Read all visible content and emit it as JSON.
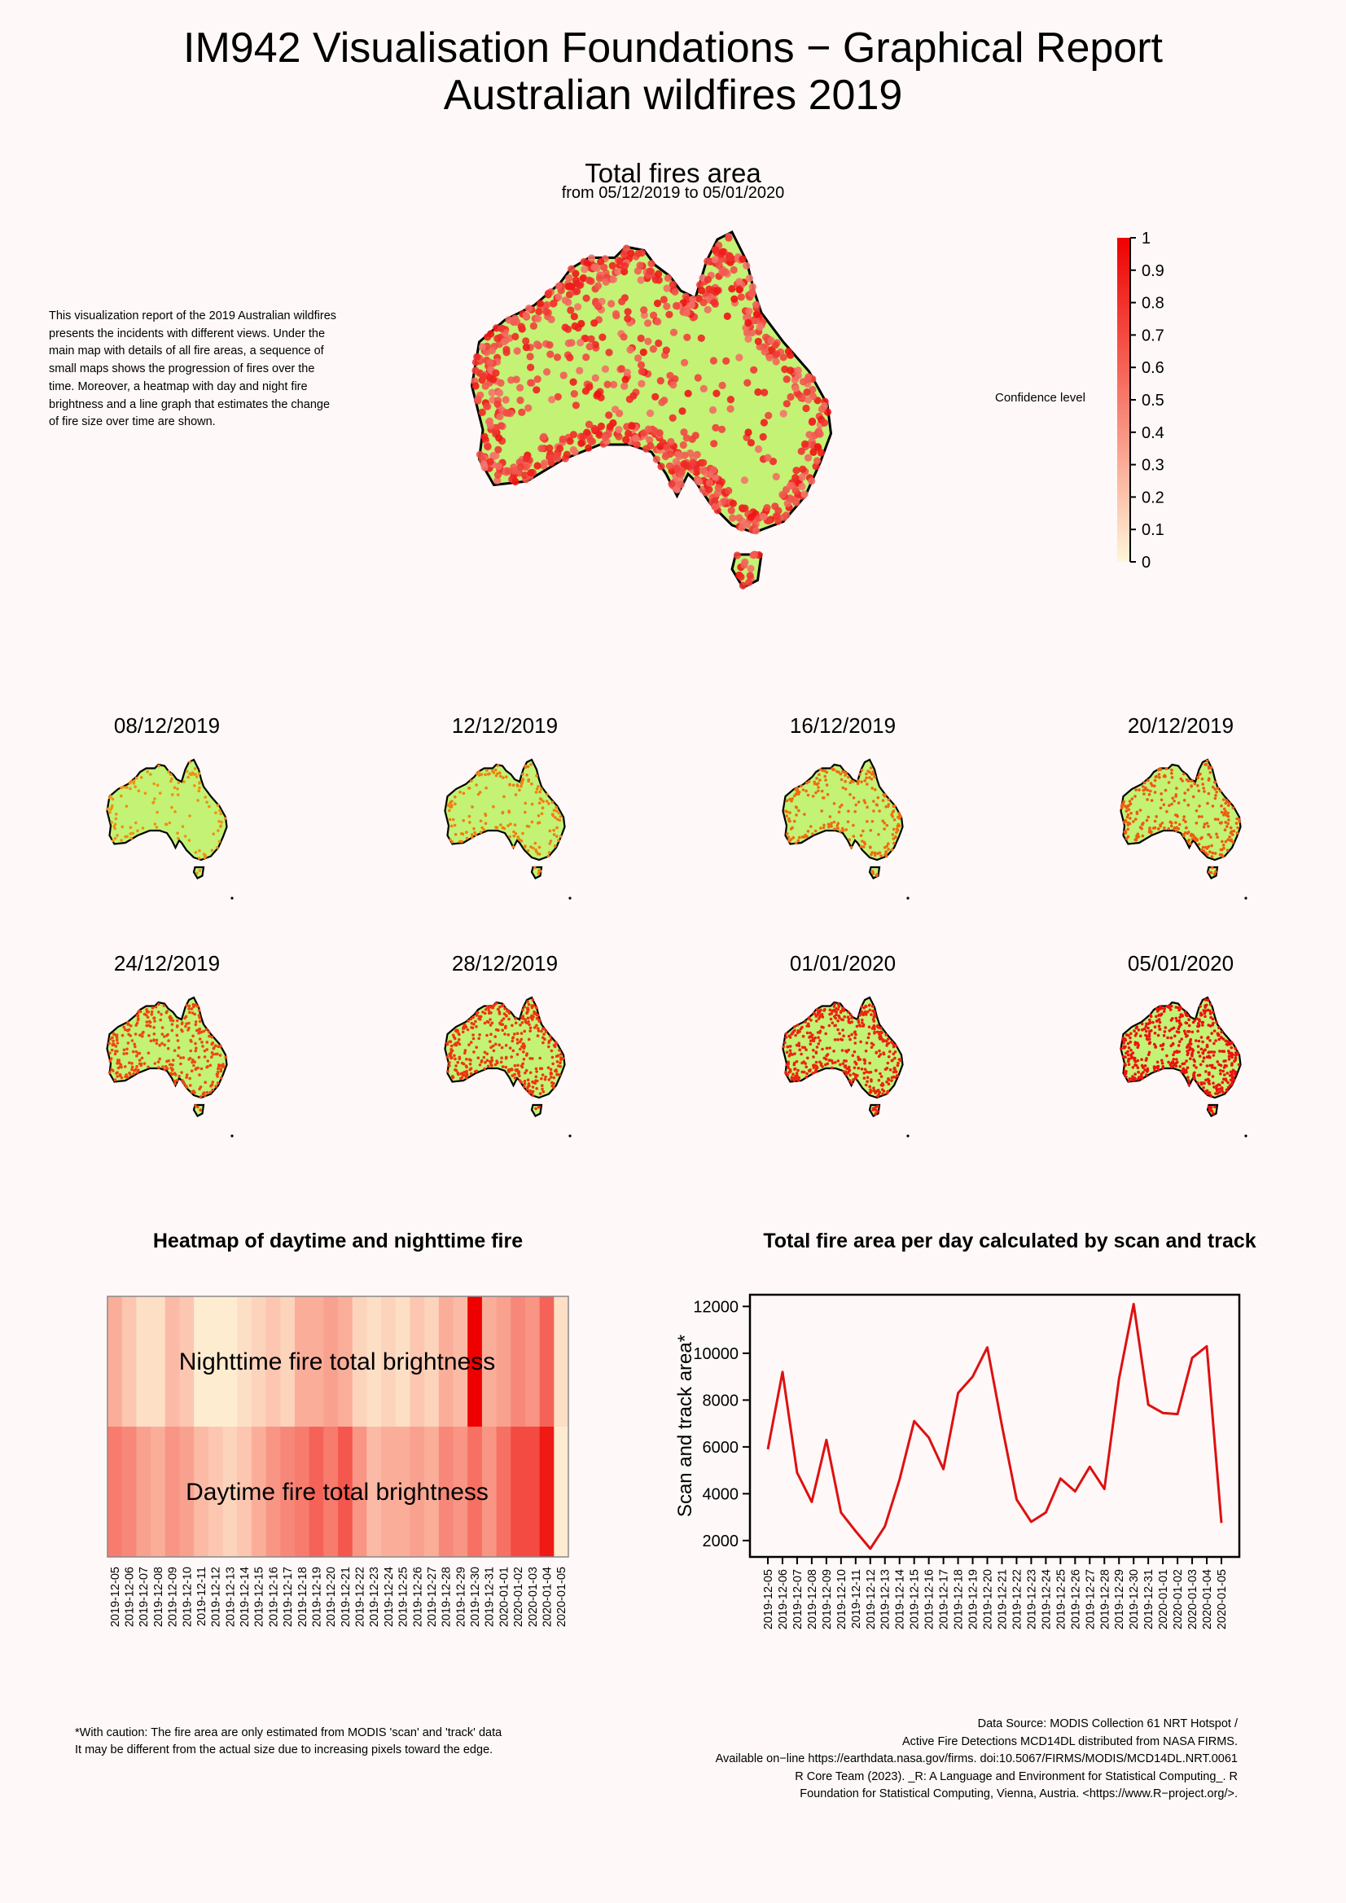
{
  "report": {
    "title_line1": "IM942 Visualisation Foundations − Graphical Report",
    "title_line2": "Australian wildfires 2019"
  },
  "main_map": {
    "title": "Total fires area",
    "subtitle": "from 05/12/2019 to 05/01/2020",
    "land_color": "#c3f275",
    "legend_label": "Confidence level",
    "legend_ticks": [
      "0",
      "0.1",
      "0.2",
      "0.3",
      "0.4",
      "0.5",
      "0.6",
      "0.7",
      "0.8",
      "0.9",
      "1"
    ],
    "legend_colors": [
      "#fff6d9",
      "#ee0000"
    ]
  },
  "description": "This visualization report of the 2019 Australian wildfires presents the incidents with different views. Under the main map with details of all fire areas, a sequence of small maps shows the progression of fires over the time. Moreover, a heatmap with day and night fire brightness and a line graph that estimates the change of fire size over time are shown.",
  "small_maps": {
    "dates": [
      "08/12/2019",
      "12/12/2019",
      "16/12/2019",
      "20/12/2019",
      "24/12/2019",
      "28/12/2019",
      "01/01/2020",
      "05/01/2020"
    ],
    "fire_color_early": "#f09010",
    "fire_color_late": "#ee1111"
  },
  "footnote_left": [
    "*With caution: The fire area are only estimated from MODIS 'scan' and 'track' data",
    "It may be different from the actual size due to increasing pixels toward the edge."
  ],
  "footnote_right": [
    "Data Source: MODIS Collection 61 NRT Hotspot /",
    "Active Fire Detections MCD14DL distributed from NASA FIRMS.",
    "Available on−line https://earthdata.nasa.gov/firms. doi:10.5067/FIRMS/MODIS/MCD14DL.NRT.0061",
    "R Core Team (2023). _R: A Language and Environment for Statistical Computing_. R",
    "Foundation for Statistical Computing, Vienna, Austria. <https://www.R−project.org/>."
  ],
  "chart_data": [
    {
      "type": "heatmap",
      "title": "Heatmap of daytime and nighttime fire",
      "rows": [
        "Nighttime fire total brightness",
        "Daytime fire total brightness"
      ],
      "categories": [
        "2019-12-05",
        "2019-12-06",
        "2019-12-07",
        "2019-12-08",
        "2019-12-09",
        "2019-12-10",
        "2019-12-11",
        "2019-12-12",
        "2019-12-13",
        "2019-12-14",
        "2019-12-15",
        "2019-12-16",
        "2019-12-17",
        "2019-12-18",
        "2019-12-19",
        "2019-12-20",
        "2019-12-21",
        "2019-12-22",
        "2019-12-23",
        "2019-12-24",
        "2019-12-25",
        "2019-12-26",
        "2019-12-27",
        "2019-12-28",
        "2019-12-29",
        "2019-12-30",
        "2019-12-31",
        "2020-01-01",
        "2020-01-02",
        "2020-01-03",
        "2020-01-04",
        "2020-01-05"
      ],
      "values": [
        [
          0.3,
          0.2,
          0.1,
          0.1,
          0.25,
          0.2,
          0.05,
          0.05,
          0.05,
          0.1,
          0.15,
          0.2,
          0.15,
          0.3,
          0.3,
          0.35,
          0.3,
          0.15,
          0.1,
          0.15,
          0.1,
          0.2,
          0.15,
          0.3,
          0.25,
          1.0,
          0.3,
          0.35,
          0.45,
          0.4,
          0.6,
          0.1
        ],
        [
          0.5,
          0.45,
          0.35,
          0.3,
          0.4,
          0.35,
          0.25,
          0.2,
          0.15,
          0.2,
          0.3,
          0.4,
          0.45,
          0.5,
          0.6,
          0.5,
          0.65,
          0.4,
          0.25,
          0.3,
          0.3,
          0.35,
          0.3,
          0.45,
          0.4,
          0.55,
          0.4,
          0.55,
          0.7,
          0.7,
          0.9,
          0.05
        ]
      ],
      "colors": [
        "#fff8dc",
        "#ee0000"
      ]
    },
    {
      "type": "line",
      "title": "Total fire area per day calculated by scan and track",
      "ylabel": "Scan and track area*",
      "ylim": [
        1300,
        12500
      ],
      "yticks": [
        2000,
        4000,
        6000,
        8000,
        10000,
        12000
      ],
      "x": [
        "2019-12-05",
        "2019-12-06",
        "2019-12-07",
        "2019-12-08",
        "2019-12-09",
        "2019-12-10",
        "2019-12-11",
        "2019-12-12",
        "2019-12-13",
        "2019-12-14",
        "2019-12-15",
        "2019-12-16",
        "2019-12-17",
        "2019-12-18",
        "2019-12-19",
        "2019-12-20",
        "2019-12-21",
        "2019-12-22",
        "2019-12-23",
        "2019-12-24",
        "2019-12-25",
        "2019-12-26",
        "2019-12-27",
        "2019-12-28",
        "2019-12-29",
        "2019-12-30",
        "2019-12-31",
        "2020-01-01",
        "2020-01-02",
        "2020-01-03",
        "2020-01-04",
        "2020-01-05"
      ],
      "values": [
        5900,
        9200,
        4900,
        3650,
        6300,
        3200,
        2400,
        1650,
        2600,
        4600,
        7100,
        6400,
        5050,
        8300,
        9000,
        10250,
        6900,
        3750,
        2800,
        3200,
        4650,
        4100,
        5150,
        4200,
        8900,
        12100,
        7800,
        7450,
        7400,
        9800,
        10300,
        2750
      ],
      "line_color": "#dd1111"
    }
  ]
}
